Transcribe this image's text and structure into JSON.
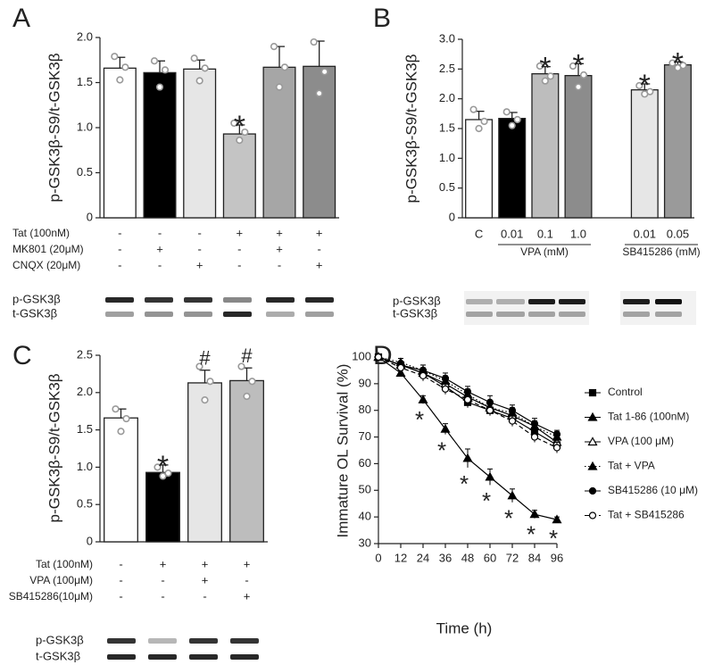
{
  "chart_data": [
    {
      "type": "bar",
      "panel": "A",
      "ylabel": "p-GSK3β-S9/t-GSK3β",
      "ylim": [
        0,
        2
      ],
      "yticks": [
        0,
        0.5,
        {
          "value": 1,
          "label": "1.0"
        },
        1.5,
        {
          "value": 2,
          "label": "2.0"
        }
      ],
      "values": [
        1.66,
        1.61,
        1.65,
        0.93,
        1.67,
        1.68
      ],
      "errors": [
        0.12,
        0.13,
        0.1,
        0.1,
        0.23,
        0.28
      ],
      "points": [
        [
          1.79,
          1.67,
          1.53
        ],
        [
          1.74,
          1.64,
          1.45
        ],
        [
          1.77,
          1.66,
          1.52
        ],
        [
          1.05,
          0.95,
          0.86
        ],
        [
          1.9,
          1.67,
          1.45
        ],
        [
          1.95,
          1.62,
          1.38
        ]
      ],
      "colors": [
        "#ffffff",
        "#000000",
        "#e6e6e6",
        "#c4c4c4",
        "#a6a6a6",
        "#8c8c8c"
      ],
      "significance": [
        null,
        null,
        null,
        "*",
        null,
        null
      ],
      "conditions": [
        {
          "name": "Tat (100nM)",
          "signs": [
            "-",
            "-",
            "-",
            "+",
            "+",
            "+"
          ]
        },
        {
          "name": "MK801 (20μM)",
          "signs": [
            "-",
            "+",
            "-",
            "-",
            "+",
            "-"
          ]
        },
        {
          "name": "CNQX (20μM)",
          "signs": [
            "-",
            "-",
            "+",
            "-",
            "-",
            "+"
          ]
        }
      ],
      "blot_labels": [
        "p-GSK3β",
        "t-GSK3β"
      ]
    },
    {
      "type": "bar",
      "panel": "B",
      "ylabel": "p-GSK3β-S9/t-GSK3β",
      "ylim": [
        0,
        3
      ],
      "yticks": [
        0,
        0.5,
        {
          "value": 1,
          "label": "1.0"
        },
        1.5,
        {
          "value": 2,
          "label": "2.0"
        },
        2.5,
        {
          "value": 3,
          "label": "3.0"
        }
      ],
      "categories": [
        "C",
        "0.01",
        "0.1",
        "1.0",
        null,
        "0.01",
        "0.05"
      ],
      "values": [
        1.65,
        1.67,
        2.42,
        2.39,
        null,
        2.15,
        2.57
      ],
      "errors": [
        0.14,
        0.1,
        0.12,
        0.2,
        null,
        0.1,
        0.05
      ],
      "points": [
        [
          1.82,
          1.62,
          1.5
        ],
        [
          1.78,
          1.65,
          1.55
        ],
        [
          2.55,
          2.38,
          2.3
        ],
        [
          2.55,
          2.4,
          2.2
        ],
        null,
        [
          2.22,
          2.12,
          2.08
        ],
        [
          2.6,
          2.56,
          2.52
        ]
      ],
      "colors": [
        "#ffffff",
        "#000000",
        "#bdbdbd",
        "#8c8c8c",
        null,
        "#e6e6e6",
        "#9a9a9a"
      ],
      "significance": [
        null,
        null,
        "*",
        "*",
        null,
        "*",
        "*"
      ],
      "group_labels": [
        "VPA (mM)",
        "SB415286 (mM)"
      ],
      "blot_labels": [
        "p-GSK3β",
        "t-GSK3β"
      ]
    },
    {
      "type": "bar",
      "panel": "C",
      "ylabel": "p-GSK3β-S9/t-GSK3β",
      "ylim": [
        0,
        2.5
      ],
      "yticks": [
        0,
        0.5,
        {
          "value": 1,
          "label": "1.0"
        },
        1.5,
        {
          "value": 2,
          "label": "2.0"
        },
        2.5
      ],
      "values": [
        1.66,
        0.93,
        2.13,
        2.16
      ],
      "errors": [
        0.12,
        0.1,
        0.17,
        0.17
      ],
      "points": [
        [
          1.78,
          1.65,
          1.48
        ],
        [
          1.0,
          0.92,
          0.88
        ],
        [
          2.35,
          2.15,
          1.9
        ],
        [
          2.35,
          2.15,
          1.95
        ]
      ],
      "colors": [
        "#ffffff",
        "#000000",
        "#e6e6e6",
        "#bdbdbd"
      ],
      "significance": [
        null,
        "*",
        "#",
        "#"
      ],
      "conditions": [
        {
          "name": "Tat (100nM)",
          "signs": [
            "-",
            "+",
            "+",
            "+"
          ]
        },
        {
          "name": "VPA (100μM)",
          "signs": [
            "-",
            "-",
            "+",
            "-"
          ]
        },
        {
          "name": "SB415286(10μM)",
          "signs": [
            "-",
            "-",
            "-",
            "+"
          ]
        }
      ],
      "blot_labels": [
        "p-GSK3β",
        "t-GSK3β"
      ]
    },
    {
      "type": "line",
      "panel": "D",
      "xlabel": "Time (h)",
      "ylabel": "Immature OL Survival (%)",
      "x": [
        0,
        12,
        24,
        36,
        48,
        60,
        72,
        84,
        96
      ],
      "xlim": [
        0,
        96
      ],
      "xticks": [
        0,
        12,
        24,
        36,
        48,
        60,
        72,
        84,
        96
      ],
      "ylim": [
        30,
        100
      ],
      "yticks": [
        30,
        40,
        50,
        60,
        70,
        80,
        90,
        100
      ],
      "series": [
        {
          "name": "Control",
          "color": "#000000",
          "marker": "square",
          "dash": "solid",
          "values": [
            100,
            97,
            94,
            89,
            83,
            80,
            77,
            72,
            67
          ],
          "errors": [
            0,
            1.5,
            1.5,
            2,
            2,
            2,
            2,
            2,
            2
          ]
        },
        {
          "name": "Tat 1-86 (100nM)",
          "color": "#000000",
          "marker": "triangle",
          "dash": "solid",
          "values": [
            100,
            94,
            84,
            73,
            62,
            55,
            48,
            41,
            39
          ],
          "errors": [
            0,
            1,
            1.5,
            2,
            3.5,
            3,
            2.5,
            1.5,
            1
          ],
          "significance": [
            null,
            null,
            "*",
            "*",
            "*",
            "*",
            "*",
            "*",
            "*"
          ]
        },
        {
          "name": "VPA (100  μM)",
          "color": "#000000",
          "marker": "triangle-open",
          "dash": "solid",
          "values": [
            100,
            97,
            94,
            90,
            85,
            81,
            78,
            74,
            68
          ],
          "errors": [
            0,
            1.5,
            2,
            2,
            2,
            2.5,
            2,
            2,
            2
          ]
        },
        {
          "name": "Tat + VPA",
          "color": "#000000",
          "marker": "triangle",
          "dash": "dotted",
          "values": [
            100,
            98,
            95,
            91,
            86,
            81,
            79,
            74,
            70
          ],
          "errors": [
            0,
            1.5,
            2,
            2,
            2,
            2,
            2,
            2,
            2
          ]
        },
        {
          "name": "SB415286 (10  μM)",
          "color": "#000000",
          "marker": "circle",
          "dash": "solid",
          "values": [
            100,
            97,
            95,
            92,
            87,
            83,
            80,
            75,
            71
          ],
          "errors": [
            0,
            1.5,
            2,
            2,
            2,
            2.5,
            2,
            2,
            1.5
          ]
        },
        {
          "name": "Tat + SB415286",
          "color": "#000000",
          "marker": "circle-open",
          "dash": "dashed",
          "values": [
            100,
            96,
            93,
            88,
            84,
            80,
            76,
            70,
            66
          ],
          "errors": [
            0,
            1.5,
            2,
            2,
            2,
            2,
            2,
            2,
            2
          ]
        }
      ]
    }
  ]
}
